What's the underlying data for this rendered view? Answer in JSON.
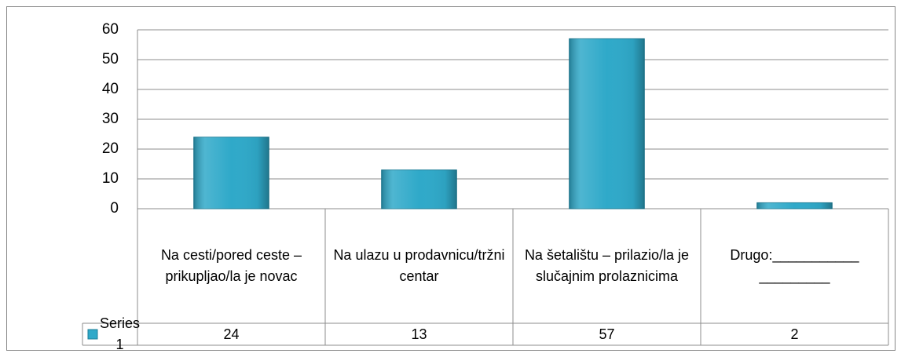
{
  "chart_data": {
    "type": "bar",
    "categories": [
      "Na cesti/pored ceste – prikupljao/la je novac",
      "Na ulazu u prodavnicu/tržni centar",
      "Na šetalištu – prilazio/la je slučajnim prolaznicima",
      "Drugo:___________ _________"
    ],
    "series": [
      {
        "name": "Series 1",
        "color": "#2fa9c9",
        "values": [
          24,
          13,
          57,
          2
        ]
      }
    ],
    "ylim": [
      0,
      60
    ],
    "yticks": [
      0,
      10,
      20,
      30,
      40,
      50,
      60
    ],
    "grid": true
  }
}
